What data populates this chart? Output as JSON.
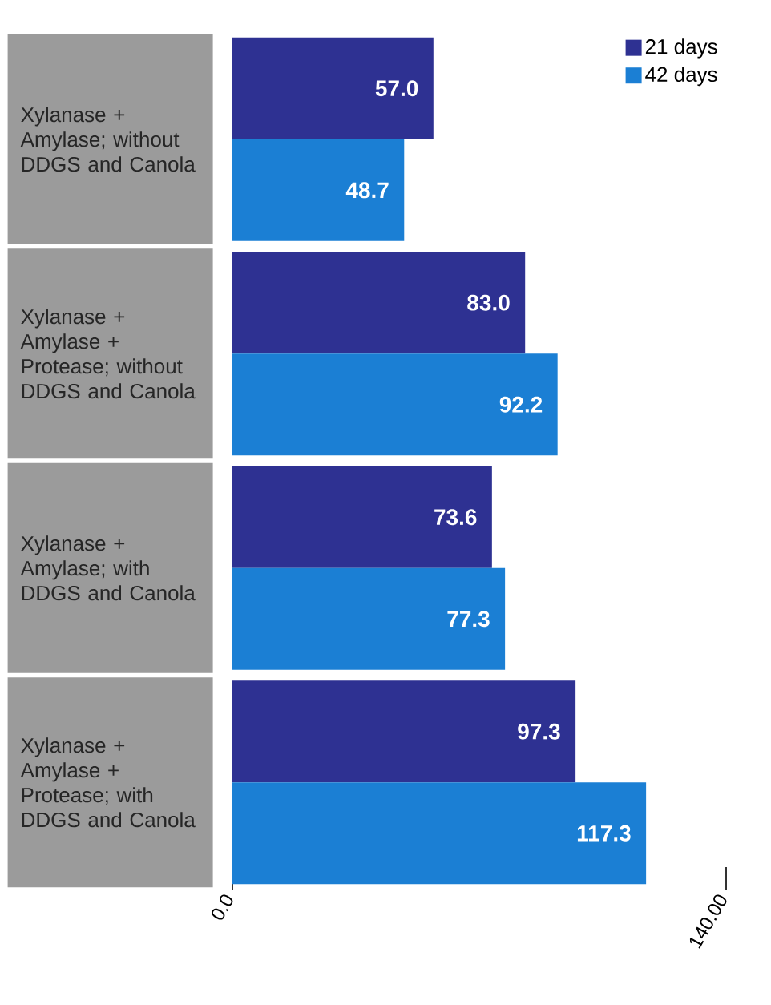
{
  "chart_data": {
    "type": "bar",
    "orientation": "horizontal",
    "categories": [
      "Xylanase + Amylase; without DDGS and Canola",
      "Xylanase + Amylase + Protease; without DDGS and Canola",
      "Xylanase + Amylase; with DDGS and Canola",
      "Xylanase + Amylase + Protease; with DDGS and Canola"
    ],
    "series": [
      {
        "name": "21 days",
        "color": "#2e3192",
        "values": [
          57.0,
          83.0,
          73.6,
          97.3
        ],
        "value_labels": [
          "57.0",
          "83.0",
          "73.6",
          "97.3"
        ]
      },
      {
        "name": "42 days",
        "color": "#1b7fd4",
        "values": [
          48.7,
          92.2,
          77.3,
          117.3
        ],
        "value_labels": [
          "48.7",
          "92.2",
          "77.3",
          "117.3"
        ]
      }
    ],
    "xlim": [
      0,
      140
    ],
    "xticks": [
      {
        "value": 0,
        "label": "0.0"
      },
      {
        "value": 140,
        "label": "140.00"
      }
    ],
    "legend": "top right",
    "grid": false
  }
}
